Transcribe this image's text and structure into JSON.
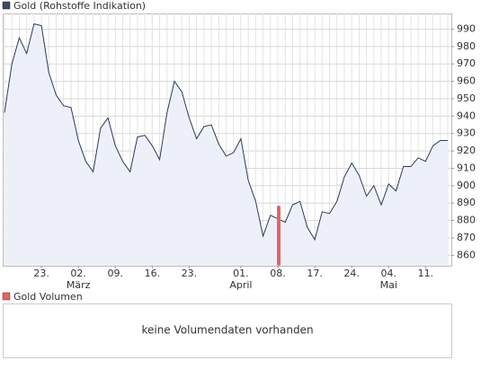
{
  "chart_data": {
    "type": "line",
    "title": "Gold (Rohstoffe Indikation)",
    "legend_color": "#3c4a64",
    "categories": [
      null,
      null,
      null,
      null,
      null,
      "23.",
      null,
      null,
      null,
      null,
      "02.",
      null,
      null,
      null,
      null,
      "09.",
      null,
      null,
      null,
      null,
      "16.",
      null,
      null,
      null,
      null,
      "23.",
      null,
      null,
      null,
      null,
      null,
      null,
      "01.",
      null,
      null,
      null,
      null,
      "08.",
      null,
      null,
      null,
      null,
      "17.",
      null,
      null,
      null,
      null,
      "24.",
      null,
      null,
      null,
      null,
      "04.",
      null,
      null,
      null,
      null,
      "11.",
      null,
      null,
      null
    ],
    "months": [
      null,
      null,
      null,
      null,
      null,
      null,
      null,
      null,
      null,
      null,
      "März",
      null,
      null,
      null,
      null,
      null,
      null,
      null,
      null,
      null,
      null,
      null,
      null,
      null,
      null,
      null,
      null,
      null,
      null,
      null,
      null,
      null,
      "April",
      null,
      null,
      null,
      null,
      null,
      null,
      null,
      null,
      null,
      null,
      null,
      null,
      null,
      null,
      null,
      null,
      null,
      null,
      null,
      "Mai",
      null,
      null,
      null,
      null,
      null,
      null,
      null,
      null
    ],
    "series": [
      {
        "name": "Gold (Rohstoffe Indikation)",
        "color": "#2e3a5a",
        "values": [
          942,
          970,
          985,
          976,
          993,
          992,
          965,
          952,
          946,
          945,
          926,
          914,
          908,
          933,
          939,
          923,
          914,
          908,
          928,
          929,
          923,
          915,
          942,
          960,
          954,
          939,
          927,
          934,
          935,
          924,
          917,
          919,
          927,
          903,
          891,
          871,
          883,
          881,
          879,
          889,
          891,
          876,
          869,
          885,
          884,
          891,
          905,
          913,
          906,
          894,
          900,
          889,
          901,
          897,
          911,
          911,
          916,
          914,
          923,
          926,
          926
        ]
      }
    ],
    "ylim": [
      854,
      999
    ],
    "yticks": [
      860,
      870,
      880,
      890,
      900,
      910,
      920,
      930,
      940,
      950,
      960,
      970,
      980,
      990
    ],
    "grid": true,
    "volume": {
      "title": "Gold Volumen",
      "color": "#e06666",
      "message": "keine Volumendaten vorhanden"
    }
  }
}
